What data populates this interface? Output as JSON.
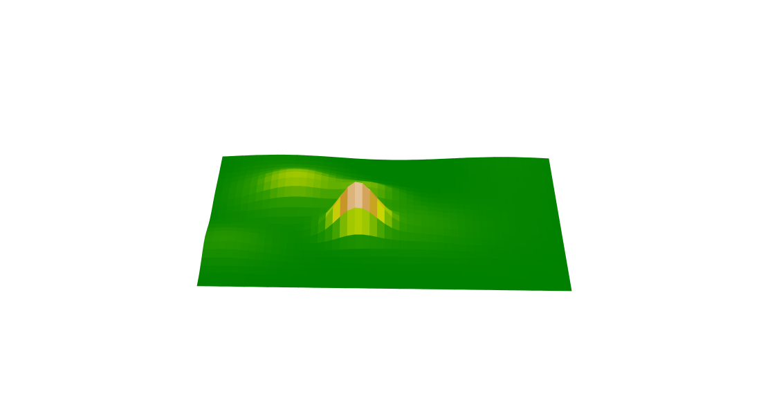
{
  "chart_data": {
    "type": "surface3d",
    "title": "",
    "xlabel": "",
    "ylabel": "",
    "zlabel": "",
    "grid": false,
    "axes_visible": false,
    "legend": "none",
    "colorscale": [
      "#008000",
      "#2e9a00",
      "#c8d800",
      "#c88a30",
      "#ffffff"
    ],
    "zlim": [
      0,
      1
    ],
    "grid_size": [
      48,
      22
    ],
    "peaks": [
      {
        "x": 0.42,
        "y": 0.58,
        "height": 1.0,
        "spread": 0.055
      },
      {
        "x": 0.24,
        "y": 0.3,
        "height": 0.42,
        "spread": 0.11
      },
      {
        "x": 0.46,
        "y": 0.34,
        "height": 0.3,
        "spread": 0.07
      },
      {
        "x": 0.56,
        "y": 0.55,
        "height": 0.22,
        "spread": 0.13
      },
      {
        "x": 0.05,
        "y": 0.7,
        "height": 0.2,
        "spread": 0.1
      }
    ]
  }
}
